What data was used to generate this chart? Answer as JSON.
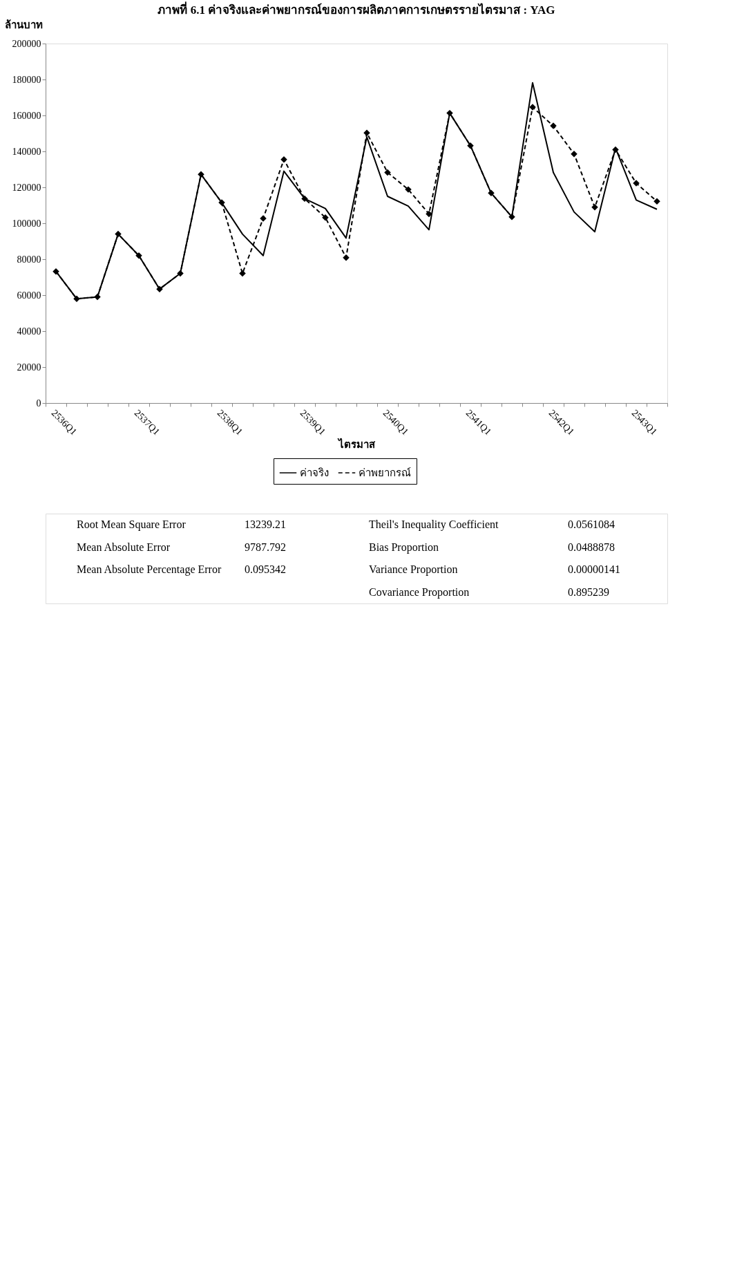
{
  "chart_data": {
    "type": "line",
    "title": "ภาพที่ 6.1  ค่าจริงและค่าพยากรณ์ของการผลิตภาคการเกษตรรายไตรมาส : YAG",
    "xlabel": "ไตรมาส",
    "ylabel": "ล้านบาท",
    "categories": [
      "2536Q1",
      null,
      null,
      null,
      "2537Q1",
      null,
      null,
      null,
      "2538Q1",
      null,
      null,
      null,
      "2539Q1",
      null,
      null,
      null,
      "2540Q1",
      null,
      null,
      null,
      "2541Q1",
      null,
      null,
      null,
      "2542Q1",
      null,
      null,
      null,
      "2543Q1",
      null
    ],
    "series": [
      {
        "name": "ค่าจริง",
        "color": "#000000",
        "line_style": "solid",
        "marker": "none",
        "values": [
          73200,
          58000,
          59000,
          94000,
          82000,
          63400,
          72100,
          127200,
          111500,
          94000,
          82000,
          129000,
          113700,
          108200,
          91800,
          148000,
          115000,
          109600,
          96400,
          161300,
          143200,
          116800,
          103600,
          178200,
          128300,
          106300,
          95300,
          141900,
          112900,
          107800
        ]
      },
      {
        "name": "ค่าพยากรณ์",
        "color": "#000000",
        "line_style": "dashed",
        "marker": "diamond",
        "values": [
          73200,
          58000,
          59000,
          94000,
          82000,
          63400,
          72100,
          127200,
          111500,
          72100,
          102700,
          135500,
          113700,
          103200,
          80900,
          150300,
          128300,
          118800,
          105200,
          161300,
          143200,
          116800,
          103600,
          164600,
          154200,
          138600,
          108900,
          141000,
          122300,
          112200
        ]
      }
    ],
    "ylim": [
      0,
      200000
    ],
    "yticks": [
      0,
      20000,
      40000,
      60000,
      80000,
      100000,
      120000,
      140000,
      160000,
      180000,
      200000
    ],
    "grid": false,
    "legend": "bottom",
    "annotations": [
      "Root Mean Square Error 13239.21",
      "Mean Absolute Error 9787.792",
      "Mean Absolute Percentage Error 0.095342",
      "Theil's Inequality Coefficient 0.0561084",
      "Bias Proportion 0.0488878",
      "Variance Proportion 0.00000141",
      "Covariance Proportion 0.895239"
    ]
  }
}
